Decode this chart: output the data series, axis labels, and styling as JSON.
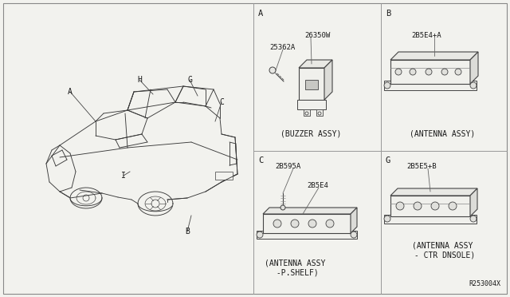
{
  "bg_color": "#f2f2ee",
  "font_color": "#1a1a1a",
  "line_color": "#444444",
  "grid_color": "#999999",
  "ref_number": "R253004X",
  "panel_A": {
    "label": "A",
    "pn1": "26350W",
    "pn2": "25362A",
    "caption1": "(BUZZER ASSY)"
  },
  "panel_B": {
    "label": "B",
    "pn1": "2B5E4+A",
    "caption1": "(ANTENNA ASSY)"
  },
  "panel_C": {
    "label": "C",
    "pn1": "2B595A",
    "pn2": "2B5E4",
    "caption1": "(ANTENNA ASSY",
    "caption2": " -P.SHELF)"
  },
  "panel_G": {
    "label": "G",
    "pn1": "2B5E5+B",
    "caption1": "(ANTENNA ASSY",
    "caption2": " - CTR DNSOLE)"
  },
  "car_labels": [
    "A",
    "H",
    "G",
    "C",
    "I",
    "B"
  ]
}
